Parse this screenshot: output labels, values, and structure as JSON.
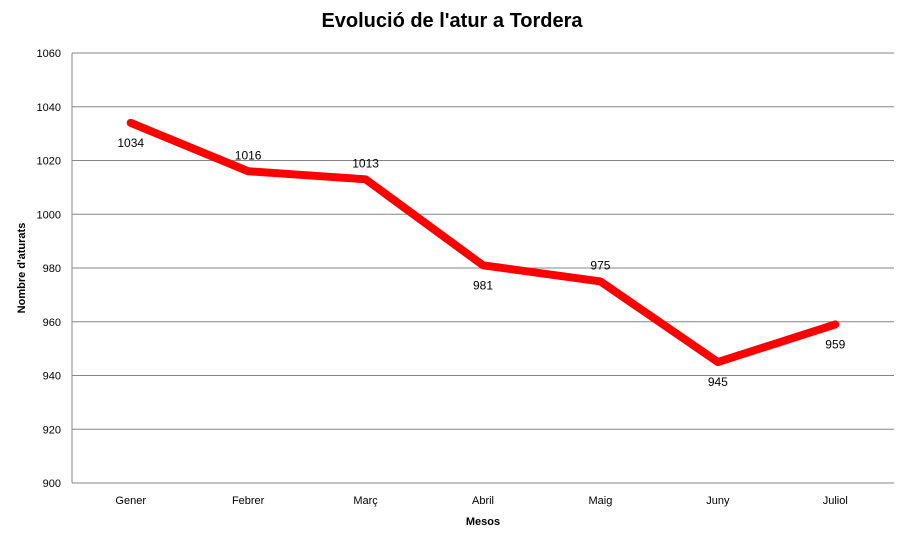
{
  "chart_data": {
    "type": "line",
    "title": "Evolució de l'atur a Tordera",
    "xlabel": "Mesos",
    "ylabel": "Nombre d'aturats",
    "categories": [
      "Gener",
      "Febrer",
      "Març",
      "Abril",
      "Maig",
      "Juny",
      "Juliol"
    ],
    "series": [
      {
        "values": [
          1034,
          1016,
          1013,
          981,
          975,
          945,
          959
        ],
        "color": "#ff0000"
      }
    ],
    "data_labels": [
      "1034",
      "1016",
      "1013",
      "981",
      "975",
      "945",
      "959"
    ],
    "ylim": [
      900,
      1060
    ],
    "yticks": [
      900,
      920,
      940,
      960,
      980,
      1000,
      1020,
      1040,
      1060
    ],
    "grid": true,
    "gridline_color": "#868686"
  }
}
